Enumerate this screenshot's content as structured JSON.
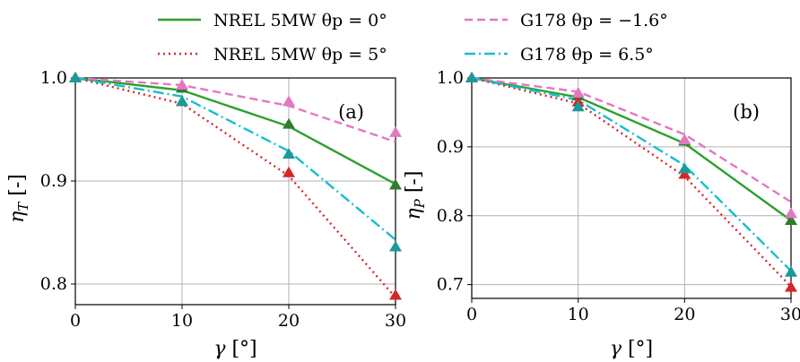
{
  "legend": [
    {
      "label": "NREL 5MW θp = 0°",
      "series_index": 0
    },
    {
      "label": "NREL 5MW θp = 5°",
      "series_index": 1
    },
    {
      "label": "G178 θp = −1.6°",
      "series_index": 2
    },
    {
      "label": "G178 θp = 6.5°",
      "series_index": 3
    }
  ],
  "series_styles": [
    {
      "color": "#2ca02c",
      "marker_color": "#2e7d2e",
      "dash": "none"
    },
    {
      "color": "#d62728",
      "marker_color": "#d62728",
      "dash": "2,4"
    },
    {
      "color": "#e377c2",
      "marker_color": "#e377c2",
      "dash": "9,5"
    },
    {
      "color": "#17becf",
      "marker_color": "#1a9a9a",
      "dash": "12,4,2,4"
    }
  ],
  "chart_data": [
    {
      "type": "line",
      "panel_tag": "(a)",
      "xlabel": "γ [°]",
      "ylabel": "ηT [-]",
      "xlim": [
        0,
        30
      ],
      "ylim": [
        0.78,
        1.0
      ],
      "xticks": [
        0,
        10,
        20,
        30
      ],
      "yticks": [
        0.8,
        0.9,
        1.0
      ],
      "ytick_labels": [
        "0.8",
        "0.9",
        "1.0"
      ],
      "grid": true,
      "x": [
        0,
        10,
        20,
        30
      ],
      "series": [
        {
          "name": "NREL 5MW θp = 0°",
          "line": [
            1.0,
            0.988,
            0.953,
            0.897
          ],
          "markers": [
            1.0,
            0.99,
            0.955,
            0.896
          ]
        },
        {
          "name": "NREL 5MW θp = 5°",
          "line": [
            1.0,
            0.975,
            0.905,
            0.787
          ],
          "markers": [
            1.0,
            0.977,
            0.908,
            0.789
          ]
        },
        {
          "name": "G178 θp = −1.6°",
          "line": [
            1.0,
            0.993,
            0.973,
            0.938
          ],
          "markers": [
            1.0,
            0.993,
            0.977,
            0.947
          ]
        },
        {
          "name": "G178 θp = 6.5°",
          "line": [
            1.0,
            0.982,
            0.929,
            0.843
          ],
          "markers": [
            1.0,
            0.977,
            0.926,
            0.836
          ]
        }
      ]
    },
    {
      "type": "line",
      "panel_tag": "(b)",
      "xlabel": "γ [°]",
      "ylabel": "ηP [-]",
      "xlim": [
        0,
        30
      ],
      "ylim": [
        0.68,
        1.0
      ],
      "xticks": [
        0,
        10,
        20,
        30
      ],
      "yticks": [
        0.7,
        0.8,
        0.9,
        1.0
      ],
      "ytick_labels": [
        "0.7",
        "0.8",
        "0.9",
        "1.0"
      ],
      "grid": true,
      "x": [
        0,
        10,
        20,
        30
      ],
      "series": [
        {
          "name": "NREL 5MW θp = 0°",
          "line": [
            1.0,
            0.972,
            0.905,
            0.793
          ],
          "markers": [
            1.0,
            0.974,
            0.908,
            0.793
          ]
        },
        {
          "name": "NREL 5MW θp = 5°",
          "line": [
            1.0,
            0.963,
            0.857,
            0.697
          ],
          "markers": [
            1.0,
            0.965,
            0.86,
            0.696
          ]
        },
        {
          "name": "G178 θp = −1.6°",
          "line": [
            1.0,
            0.98,
            0.918,
            0.82
          ],
          "markers": [
            1.0,
            0.978,
            0.91,
            0.803
          ]
        },
        {
          "name": "G178 θp = 6.5°",
          "line": [
            1.0,
            0.968,
            0.873,
            0.72
          ],
          "markers": [
            1.0,
            0.958,
            0.868,
            0.718
          ]
        }
      ]
    }
  ]
}
